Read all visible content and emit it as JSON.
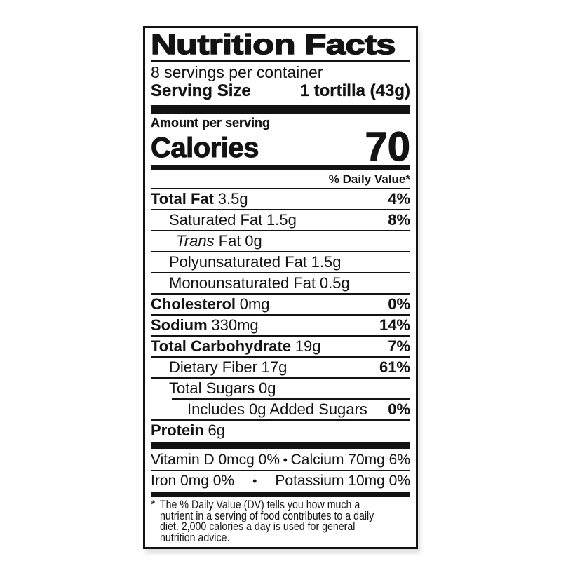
{
  "label": {
    "title": "Nutrition Facts",
    "servings_per_container": "8 servings per container",
    "serving_size": {
      "label": "Serving Size",
      "value": "1 tortilla (43g)"
    },
    "amount_per_serving": "Amount per serving",
    "calories": {
      "label": "Calories",
      "value": "70"
    },
    "daily_value_header": "% Daily Value*",
    "text_color": "#131313",
    "background_color": "#ffffff",
    "nutrients": [
      {
        "name": "Total Fat",
        "amount": "3.5g",
        "dv": "4%",
        "emphasis": "bold",
        "indent": 0
      },
      {
        "name": "Saturated Fat",
        "amount": "1.5g",
        "dv": "8%",
        "emphasis": "regular",
        "indent": 1
      },
      {
        "name": "Trans",
        "name_suffix": " Fat",
        "amount": "0g",
        "dv": "",
        "emphasis": "italic-name",
        "indent": 1.4
      },
      {
        "name": "Polyunsaturated Fat",
        "amount": "1.5g",
        "dv": "",
        "emphasis": "regular",
        "indent": 1
      },
      {
        "name": "Monounsaturated Fat",
        "amount": "0.5g",
        "dv": "",
        "emphasis": "regular",
        "indent": 1
      },
      {
        "name": "Cholesterol",
        "amount": "0mg",
        "dv": "0%",
        "emphasis": "bold",
        "indent": 0
      },
      {
        "name": "Sodium",
        "amount": "330mg",
        "dv": "14%",
        "emphasis": "bold",
        "indent": 0
      },
      {
        "name": "Total Carbohydrate",
        "amount": "19g",
        "dv": "7%",
        "emphasis": "bold",
        "indent": 0
      },
      {
        "name": "Dietary Fiber",
        "amount": "17g",
        "dv": "61%",
        "emphasis": "regular",
        "indent": 1
      },
      {
        "name": "Total Sugars",
        "amount": "0g",
        "dv": "",
        "emphasis": "regular",
        "indent": 1
      },
      {
        "name": "Includes 0g Added Sugars",
        "amount": "",
        "dv": "0%",
        "emphasis": "regular",
        "indent": 2,
        "rule_indented": true
      },
      {
        "name": "Protein",
        "amount": "6g",
        "dv": "",
        "emphasis": "bold",
        "indent": 0
      }
    ],
    "micronutrients": [
      {
        "left": "Vitamin D 0mcg 0%",
        "separator": "•",
        "right": "Calcium 70mg 6%"
      },
      {
        "left": "Iron 0mg 0%",
        "separator": "•",
        "right": "Potassium 10mg 0%"
      }
    ],
    "footnote": {
      "marker": "*",
      "text": "The % Daily Value (DV) tells you how much a nutrient in a serving of food contributes to a daily diet. 2,000 calories a day is used for general nutrition advice."
    }
  }
}
